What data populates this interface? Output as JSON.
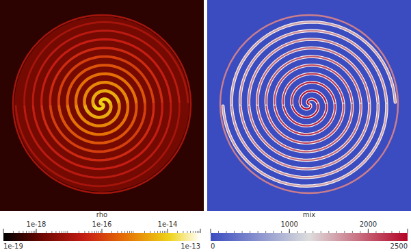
{
  "chart_data": [
    {
      "type": "heatmap",
      "title": "rho",
      "log": true,
      "background": 3e-19,
      "disk_value": 2e-18,
      "ring_value": 1e-17,
      "arm_values": [
        1e-14,
        3e-15,
        1e-15,
        5e-16,
        2e-16,
        1e-16,
        5e-17,
        3e-17,
        2e-17,
        1e-17
      ],
      "colorbar": {
        "range": [
          1e-19,
          1e-13
        ],
        "ticks": [
          {
            "value": 1e-19,
            "label": "1e-19"
          },
          {
            "value": 1e-18,
            "label": "1e-18"
          },
          {
            "value": 1e-16,
            "label": "1e-16"
          },
          {
            "value": 1e-14,
            "label": "1e-14"
          },
          {
            "value": 1e-13,
            "label": "1e-13"
          }
        ]
      }
    },
    {
      "type": "heatmap",
      "title": "mix",
      "background": 0,
      "disk_value": 0,
      "ring_value": 1800,
      "arm_values": [
        2500,
        2400,
        2300,
        2200,
        2100,
        2000,
        1900,
        1800,
        1700,
        1600
      ],
      "colorbar": {
        "range": [
          0,
          2500
        ],
        "ticks": [
          0,
          1000,
          2000,
          2500
        ]
      }
    }
  ]
}
